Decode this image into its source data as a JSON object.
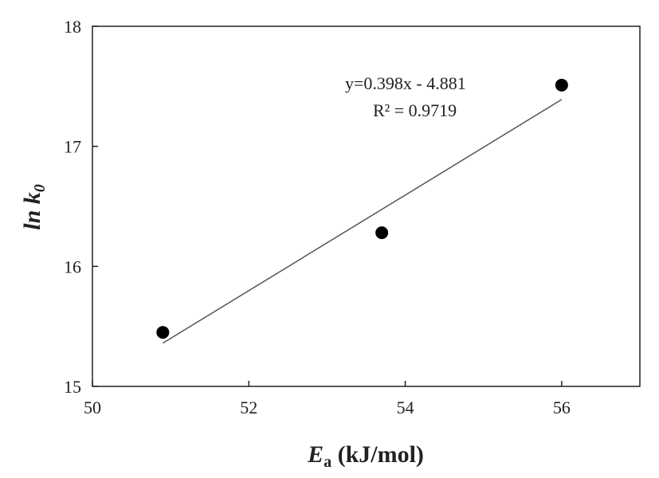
{
  "chart_data": {
    "type": "scatter",
    "title": "",
    "xlabel_main": "E",
    "xlabel_sub": "a",
    "xlabel_unit": " (kJ/mol)",
    "ylabel_main": "ln k",
    "ylabel_sub": "0",
    "xlim": [
      50,
      57
    ],
    "ylim": [
      15,
      18
    ],
    "xticks": [
      50,
      52,
      54,
      56
    ],
    "yticks": [
      15,
      16,
      17,
      18
    ],
    "grid": false,
    "series": [
      {
        "x": [
          50.9,
          53.7,
          56.0
        ],
        "y": [
          15.45,
          16.28,
          17.51
        ]
      }
    ],
    "trendline": {
      "x_start": 50.9,
      "x_end": 56.0,
      "y_start": 15.36,
      "y_end": 17.39
    },
    "annotations": {
      "equation": "y=0.398x - 4.881",
      "r2": "R² = 0.9719"
    }
  }
}
